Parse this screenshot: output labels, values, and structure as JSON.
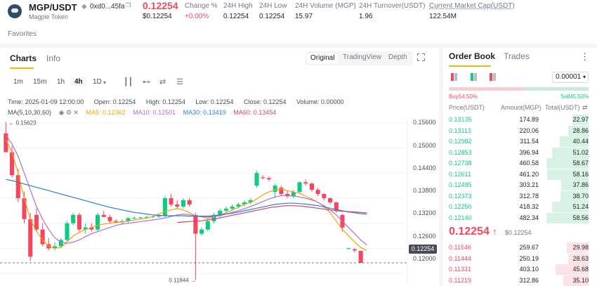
{
  "header": {
    "pair": "MGP/USDT",
    "token_name": "Magpie Token",
    "address": "0xd0...45fa",
    "price": "0.12254",
    "price_usd": "$0.12254",
    "stats": [
      {
        "label": "Change %",
        "value": "+0.00%"
      },
      {
        "label": "24H High",
        "value": "0.12254"
      },
      {
        "label": "24H Low",
        "value": "0.12254"
      },
      {
        "label": "24H Volume (MGP)",
        "value": "15.97"
      },
      {
        "label": "24H Turnover(USDT)",
        "value": "1.96"
      },
      {
        "label": "Current Market Cap(USDT)",
        "value": "122.54M"
      }
    ]
  },
  "favorites": "Favorites",
  "chart_panel": {
    "tabs": [
      "Charts",
      "Info"
    ],
    "views": [
      "Original",
      "TradingView",
      "Depth"
    ],
    "intervals": [
      "1m",
      "15m",
      "1h",
      "4h",
      "1D"
    ],
    "ohlc": {
      "time": "Time: 2025-01-09 12:00:00",
      "open": "Open: 0.12254",
      "high": "High: 0.12254",
      "low": "Low: 0.12254",
      "close": "Close: 0.12254",
      "volume": "Volume: 0.00000"
    },
    "ma": {
      "label": "MA(5,10,30,60)",
      "ma5": "MA5: 0.12362",
      "ma10": "MA10: 0.12501",
      "ma30": "MA30: 0.13419",
      "ma60": "MA60: 0.13454"
    },
    "y_ticks": [
      "0.15600",
      "0.15000",
      "0.14400",
      "0.13800",
      "0.13200",
      "0.12600",
      "0.12000"
    ],
    "high_label": "0.15623",
    "low_label": "0.11844",
    "current_price_tag": "0.12254"
  },
  "chart_data": {
    "type": "candlestick",
    "ylim": [
      0.1175,
      0.1575
    ],
    "y_ticks": [
      0.156,
      0.15,
      0.144,
      0.138,
      0.132,
      0.126,
      0.12
    ],
    "candles": [
      {
        "o": 0.1535,
        "h": 0.15623,
        "l": 0.149,
        "c": 0.149
      },
      {
        "o": 0.149,
        "h": 0.1505,
        "l": 0.143,
        "c": 0.1435
      },
      {
        "o": 0.1435,
        "h": 0.145,
        "l": 0.137,
        "c": 0.138
      },
      {
        "o": 0.138,
        "h": 0.1395,
        "l": 0.132,
        "c": 0.133
      },
      {
        "o": 0.133,
        "h": 0.1345,
        "l": 0.123,
        "c": 0.124
      },
      {
        "o": 0.134,
        "h": 0.1355,
        "l": 0.13,
        "c": 0.1305
      },
      {
        "o": 0.1305,
        "h": 0.132,
        "l": 0.1265,
        "c": 0.127
      },
      {
        "o": 0.127,
        "h": 0.1285,
        "l": 0.1255,
        "c": 0.126
      },
      {
        "o": 0.126,
        "h": 0.1275,
        "l": 0.1255,
        "c": 0.1265
      },
      {
        "o": 0.1265,
        "h": 0.1285,
        "l": 0.126,
        "c": 0.128
      },
      {
        "o": 0.128,
        "h": 0.1325,
        "l": 0.1275,
        "c": 0.132
      },
      {
        "o": 0.132,
        "h": 0.1345,
        "l": 0.1315,
        "c": 0.134
      },
      {
        "o": 0.134,
        "h": 0.1345,
        "l": 0.13,
        "c": 0.1305
      },
      {
        "o": 0.1305,
        "h": 0.132,
        "l": 0.1295,
        "c": 0.131
      },
      {
        "o": 0.131,
        "h": 0.132,
        "l": 0.13,
        "c": 0.1305
      },
      {
        "o": 0.1305,
        "h": 0.1345,
        "l": 0.13,
        "c": 0.134
      },
      {
        "o": 0.134,
        "h": 0.135,
        "l": 0.1335,
        "c": 0.1335
      },
      {
        "o": 0.1335,
        "h": 0.134,
        "l": 0.132,
        "c": 0.1325
      },
      {
        "o": 0.1325,
        "h": 0.133,
        "l": 0.132,
        "c": 0.1322
      },
      {
        "o": 0.1322,
        "h": 0.133,
        "l": 0.1318,
        "c": 0.1325
      },
      {
        "o": 0.1325,
        "h": 0.1335,
        "l": 0.132,
        "c": 0.1332
      },
      {
        "o": 0.1332,
        "h": 0.1336,
        "l": 0.133,
        "c": 0.1333
      },
      {
        "o": 0.1333,
        "h": 0.1336,
        "l": 0.133,
        "c": 0.1334
      },
      {
        "o": 0.1334,
        "h": 0.1338,
        "l": 0.1331,
        "c": 0.1335
      },
      {
        "o": 0.1335,
        "h": 0.1338,
        "l": 0.1332,
        "c": 0.1336
      },
      {
        "o": 0.1336,
        "h": 0.134,
        "l": 0.1333,
        "c": 0.1338
      },
      {
        "o": 0.1338,
        "h": 0.1385,
        "l": 0.1335,
        "c": 0.138
      },
      {
        "o": 0.138,
        "h": 0.139,
        "l": 0.136,
        "c": 0.1365
      },
      {
        "o": 0.1365,
        "h": 0.1375,
        "l": 0.1355,
        "c": 0.136
      },
      {
        "o": 0.136,
        "h": 0.138,
        "l": 0.1355,
        "c": 0.1375
      },
      {
        "o": 0.1375,
        "h": 0.138,
        "l": 0.136,
        "c": 0.1365
      },
      {
        "o": 0.134,
        "h": 0.1345,
        "l": 0.11844,
        "c": 0.1295
      },
      {
        "o": 0.1295,
        "h": 0.131,
        "l": 0.129,
        "c": 0.1305
      },
      {
        "o": 0.1305,
        "h": 0.133,
        "l": 0.13,
        "c": 0.1325
      },
      {
        "o": 0.1325,
        "h": 0.1345,
        "l": 0.132,
        "c": 0.134
      },
      {
        "o": 0.134,
        "h": 0.1355,
        "l": 0.1335,
        "c": 0.135
      },
      {
        "o": 0.135,
        "h": 0.136,
        "l": 0.1345,
        "c": 0.1355
      },
      {
        "o": 0.1355,
        "h": 0.1365,
        "l": 0.135,
        "c": 0.136
      },
      {
        "o": 0.136,
        "h": 0.137,
        "l": 0.1355,
        "c": 0.1365
      },
      {
        "o": 0.1365,
        "h": 0.1375,
        "l": 0.136,
        "c": 0.137
      },
      {
        "o": 0.137,
        "h": 0.138,
        "l": 0.1365,
        "c": 0.1375
      },
      {
        "o": 0.141,
        "h": 0.1445,
        "l": 0.1405,
        "c": 0.144
      },
      {
        "o": 0.143,
        "h": 0.1435,
        "l": 0.1425,
        "c": 0.1428
      },
      {
        "o": 0.1428,
        "h": 0.1432,
        "l": 0.142,
        "c": 0.1425
      },
      {
        "o": 0.1395,
        "h": 0.1415,
        "l": 0.138,
        "c": 0.141
      },
      {
        "o": 0.1405,
        "h": 0.141,
        "l": 0.1385,
        "c": 0.139
      },
      {
        "o": 0.139,
        "h": 0.1398,
        "l": 0.138,
        "c": 0.1385
      },
      {
        "o": 0.1385,
        "h": 0.14,
        "l": 0.138,
        "c": 0.1395
      },
      {
        "o": 0.1395,
        "h": 0.142,
        "l": 0.139,
        "c": 0.1418
      },
      {
        "o": 0.1418,
        "h": 0.1425,
        "l": 0.141,
        "c": 0.1415
      },
      {
        "o": 0.1415,
        "h": 0.1418,
        "l": 0.1395,
        "c": 0.14
      },
      {
        "o": 0.14,
        "h": 0.1405,
        "l": 0.1385,
        "c": 0.139
      },
      {
        "o": 0.139,
        "h": 0.1392,
        "l": 0.1375,
        "c": 0.138
      },
      {
        "o": 0.138,
        "h": 0.1382,
        "l": 0.1365,
        "c": 0.137
      },
      {
        "o": 0.137,
        "h": 0.1372,
        "l": 0.1345,
        "c": 0.135
      },
      {
        "o": 0.134,
        "h": 0.1342,
        "l": 0.13,
        "c": 0.131
      },
      {
        "o": 0.126,
        "h": 0.1262,
        "l": 0.1258,
        "c": 0.126
      },
      {
        "o": 0.1258,
        "h": 0.126,
        "l": 0.125,
        "c": 0.1255
      },
      {
        "o": 0.1254,
        "h": 0.1254,
        "l": 0.12254,
        "c": 0.12254
      }
    ],
    "ma_series": [
      {
        "name": "MA5",
        "color": "#f0a30a",
        "values": [
          0.152,
          0.149,
          0.144,
          0.138,
          0.133,
          0.13,
          0.128,
          0.1265,
          0.126,
          0.1262,
          0.1275,
          0.129,
          0.1298,
          0.1305,
          0.131,
          0.1315,
          0.1318,
          0.132,
          0.1322,
          0.1323,
          0.1325,
          0.1328,
          0.133,
          0.1332,
          0.1336,
          0.1342,
          0.1348,
          0.1352,
          0.1355,
          0.1352,
          0.1345,
          0.1338,
          0.1335,
          0.1332,
          0.1335,
          0.134,
          0.1345,
          0.1352,
          0.1358,
          0.1365,
          0.137,
          0.1378,
          0.1388,
          0.1395,
          0.14,
          0.1402,
          0.1398,
          0.1395,
          0.1392,
          0.1385,
          0.1378,
          0.137,
          0.136,
          0.1345,
          0.1325,
          0.1305,
          0.129,
          0.1275,
          0.1262,
          0.1255
        ]
      },
      {
        "name": "MA10",
        "color": "#b06fd8",
        "values": [
          0.153,
          0.151,
          0.148,
          0.144,
          0.14,
          0.136,
          0.133,
          0.1305,
          0.1285,
          0.1275,
          0.1272,
          0.1275,
          0.128,
          0.1288,
          0.1295,
          0.13,
          0.1305,
          0.131,
          0.1315,
          0.1318,
          0.132,
          0.1322,
          0.1324,
          0.1326,
          0.1328,
          0.133,
          0.1333,
          0.1336,
          0.134,
          0.1342,
          0.134,
          0.1338,
          0.1336,
          0.1335,
          0.1336,
          0.1338,
          0.1342,
          0.1346,
          0.135,
          0.1355,
          0.136,
          0.1366,
          0.1372,
          0.1378,
          0.1383,
          0.1386,
          0.1386,
          0.1385,
          0.1383,
          0.138,
          0.1376,
          0.137,
          0.1362,
          0.1352,
          0.134,
          0.1325,
          0.131,
          0.1295,
          0.128,
          0.1268
        ]
      },
      {
        "name": "MA30",
        "color": "#2e7fd1",
        "values": [
          0.1425,
          0.1422,
          0.1418,
          0.1414,
          0.141,
          0.1406,
          0.1402,
          0.1398,
          0.1394,
          0.139,
          0.1386,
          0.1382,
          0.1378,
          0.1374,
          0.137,
          0.1366,
          0.1362,
          0.1358,
          0.1355,
          0.1352,
          0.1349,
          0.1346,
          0.1344,
          0.1342,
          0.134,
          0.1339,
          0.1338,
          0.1338,
          0.1338,
          0.1338,
          0.1337,
          0.1337,
          0.1337,
          0.1337,
          0.1338,
          0.134,
          0.1342,
          0.1344,
          0.1347,
          0.135,
          0.1353,
          0.1356,
          0.1359,
          0.1362,
          0.1365,
          0.1367,
          0.1368,
          0.1368,
          0.1367,
          0.1366,
          0.1364,
          0.1362,
          0.1359,
          0.1356,
          0.1353,
          0.135,
          0.1347,
          0.1345,
          0.1343,
          0.1342
        ]
      },
      {
        "name": "MA60",
        "color": "#d9426b",
        "values": [
          null,
          null,
          null,
          null,
          null,
          null,
          null,
          null,
          null,
          null,
          null,
          null,
          null,
          null,
          null,
          null,
          null,
          null,
          null,
          null,
          null,
          null,
          null,
          null,
          null,
          null,
          null,
          null,
          0.1322,
          0.1323,
          0.1324,
          0.1325,
          0.1326,
          0.1328,
          0.133,
          0.1333,
          0.1336,
          0.1339,
          0.1342,
          0.1345,
          0.1348,
          0.1351,
          0.1354,
          0.1357,
          0.1359,
          0.1361,
          0.1362,
          0.1362,
          0.1361,
          0.136,
          0.1358,
          0.1356,
          0.1354,
          0.1352,
          0.135,
          0.1349,
          0.1348,
          0.1347,
          0.1346,
          0.1345
        ]
      }
    ]
  },
  "order_book": {
    "tabs": [
      "Order Book",
      "Trades"
    ],
    "tick": "0.00001",
    "buy_pct": "Buy54.50%",
    "sell_pct": "Sell45.50%",
    "buy_ratio": 0.545,
    "headers": [
      "Price(USDT)",
      "Amount(MGP)",
      "Total(USDT)"
    ],
    "asks": [
      {
        "price": "0.13135",
        "amount": "174.89",
        "total": "22.97",
        "depth": 0.39
      },
      {
        "price": "0.13113",
        "amount": "220.06",
        "total": "28.86",
        "depth": 0.49
      },
      {
        "price": "0.12982",
        "amount": "311.54",
        "total": "40.44",
        "depth": 0.69
      },
      {
        "price": "0.12853",
        "amount": "396.94",
        "total": "51.02",
        "depth": 0.87
      },
      {
        "price": "0.12738",
        "amount": "460.58",
        "total": "58.67",
        "depth": 1.0
      },
      {
        "price": "0.12611",
        "amount": "461.20",
        "total": "58.16",
        "depth": 0.99
      },
      {
        "price": "0.12485",
        "amount": "303.21",
        "total": "37.86",
        "depth": 0.65
      },
      {
        "price": "0.12373",
        "amount": "312.78",
        "total": "38.70",
        "depth": 0.66
      },
      {
        "price": "0.12250",
        "amount": "418.32",
        "total": "51.24",
        "depth": 0.87
      },
      {
        "price": "0.12140",
        "amount": "482.34",
        "total": "58.56",
        "depth": 1.0
      }
    ],
    "mid_price": "0.12254",
    "mid_arrow": "↑",
    "mid_usd": "$0.12254",
    "bids": [
      {
        "price": "0.11546",
        "amount": "259.67",
        "total": "29.98",
        "depth": 0.51
      },
      {
        "price": "0.11444",
        "amount": "250.19",
        "total": "28.63",
        "depth": 0.49
      },
      {
        "price": "0.11331",
        "amount": "403.10",
        "total": "45.68",
        "depth": 0.78
      },
      {
        "price": "0.11219",
        "amount": "312.86",
        "total": "35.10",
        "depth": 0.6
      }
    ]
  }
}
